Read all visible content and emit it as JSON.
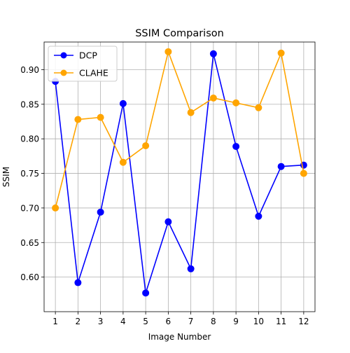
{
  "chart_data": {
    "type": "line",
    "title": "SSIM Comparison",
    "xlabel": "Image Number",
    "ylabel": "SSIM",
    "x": [
      1,
      2,
      3,
      4,
      5,
      6,
      7,
      8,
      9,
      10,
      11,
      12
    ],
    "x_tick_labels": [
      "1",
      "2",
      "3",
      "4",
      "5",
      "6",
      "7",
      "8",
      "9",
      "10",
      "11",
      "12"
    ],
    "xlim": [
      0.5,
      12.5
    ],
    "ylim": [
      0.55,
      0.94
    ],
    "y_ticks": [
      0.6,
      0.65,
      0.7,
      0.75,
      0.8,
      0.85,
      0.9
    ],
    "y_tick_labels": [
      "0.60",
      "0.65",
      "0.70",
      "0.75",
      "0.80",
      "0.85",
      "0.90"
    ],
    "grid": true,
    "legend_position": "top-left",
    "series": [
      {
        "name": "DCP",
        "color": "#0000ff",
        "marker": "circle",
        "values": [
          0.883,
          0.592,
          0.694,
          0.851,
          0.577,
          0.68,
          0.612,
          0.923,
          0.789,
          0.688,
          0.76,
          0.762
        ]
      },
      {
        "name": "CLAHE",
        "color": "#ffa500",
        "marker": "circle",
        "values": [
          0.7,
          0.828,
          0.831,
          0.766,
          0.79,
          0.926,
          0.838,
          0.859,
          0.852,
          0.845,
          0.924,
          0.75
        ]
      }
    ]
  }
}
